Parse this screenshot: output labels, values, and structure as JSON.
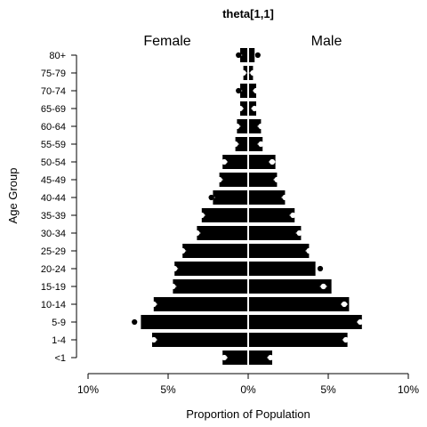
{
  "chart_data": {
    "type": "bar",
    "orientation": "horizontal-population-pyramid",
    "title": "theta[1,1]",
    "xlabel": "Proportion of Population",
    "ylabel": "Age Group",
    "xlim": [
      -10,
      10
    ],
    "x_ticks": [
      -10,
      -5,
      0,
      5,
      10
    ],
    "x_tick_labels": [
      "10%",
      "5%",
      "0%",
      "5%",
      "10%"
    ],
    "categories": [
      "<1",
      "1-4",
      "5-9",
      "10-14",
      "15-19",
      "20-24",
      "25-29",
      "30-34",
      "35-39",
      "40-44",
      "45-49",
      "50-54",
      "55-59",
      "60-64",
      "65-69",
      "70-74",
      "75-79",
      "80+"
    ],
    "series": [
      {
        "name": "Female",
        "values": [
          1.6,
          6.0,
          6.7,
          5.9,
          4.7,
          4.6,
          4.1,
          3.2,
          2.9,
          2.2,
          1.8,
          1.6,
          0.8,
          0.7,
          0.5,
          0.5,
          0.3,
          0.5
        ],
        "points": [
          1.5,
          5.9,
          7.1,
          5.9,
          4.7,
          4.6,
          4.1,
          3.2,
          2.9,
          2.3,
          1.8,
          1.5,
          0.8,
          0.7,
          0.5,
          0.6,
          0.3,
          0.6
        ]
      },
      {
        "name": "Male",
        "values": [
          1.5,
          6.2,
          7.1,
          6.3,
          5.2,
          4.2,
          3.8,
          3.3,
          2.9,
          2.3,
          1.8,
          1.7,
          0.9,
          0.8,
          0.5,
          0.5,
          0.3,
          0.4
        ],
        "points": [
          1.4,
          6.1,
          7.0,
          6.0,
          4.7,
          4.5,
          3.8,
          3.2,
          2.8,
          2.3,
          1.8,
          1.5,
          0.8,
          0.8,
          0.4,
          0.5,
          0.3,
          0.6
        ]
      }
    ],
    "colors": {
      "bar": "#000000",
      "divider": "#ffffff",
      "marker_fill": "#ffffff",
      "marker_stroke": "#000000"
    }
  }
}
